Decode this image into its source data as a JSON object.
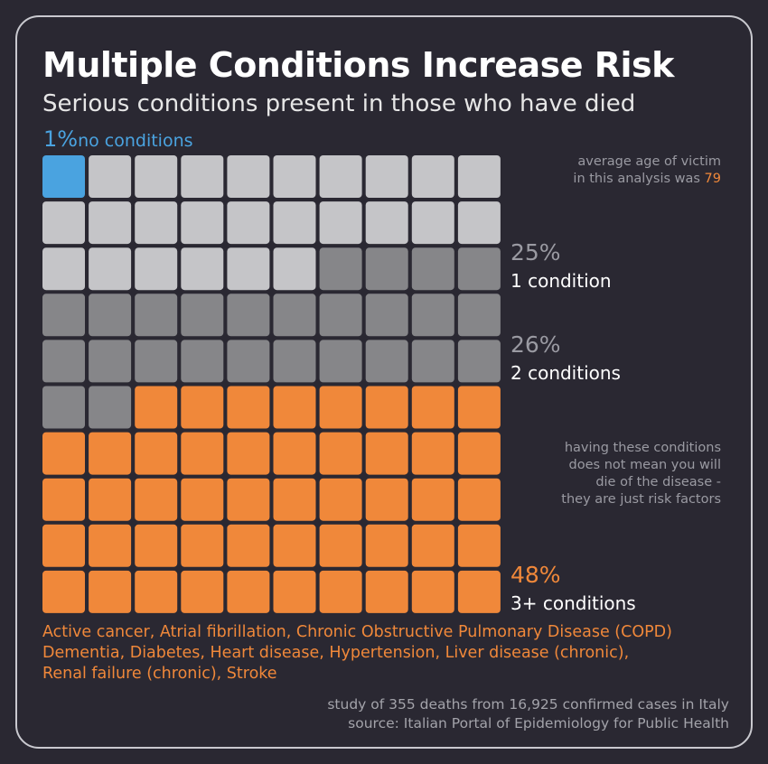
{
  "title": "Multiple Conditions Increase Risk",
  "subtitle": "Serious conditions present in those who have died",
  "no_conditions": {
    "pct": "1%",
    "label": "no conditions"
  },
  "avg_age_note": {
    "text": "average age of victim",
    "text2": "in this analysis was",
    "value": "79"
  },
  "risk_note": [
    "having these conditions",
    "does not mean you will",
    "die of the disease -",
    "they are just risk factors"
  ],
  "groups": [
    {
      "pct": "25%",
      "label": "1 condition"
    },
    {
      "pct": "26%",
      "label": "2 conditions"
    },
    {
      "pct": "48%",
      "label": "3+ conditions"
    }
  ],
  "conditions_list": [
    "Active cancer, Atrial fibrillation, Chronic Obstructive Pulmonary Disease (COPD)",
    "Dementia, Diabetes, Heart disease, Hypertension, Liver disease (chronic),",
    "Renal failure (chronic), Stroke"
  ],
  "footer": [
    "study of 355 deaths from 16,925 confirmed cases in Italy",
    "source: Italian Portal of Epidemiology for Public Health"
  ],
  "colors": {
    "background": "#2a2832",
    "no_conditions": "#4aa3e0",
    "one_condition": "#c5c5c8",
    "two_conditions": "#868689",
    "three_plus": "#f0883a"
  },
  "chart_data": {
    "type": "waffle",
    "grid": [
      10,
      10
    ],
    "series": [
      {
        "name": "no conditions",
        "value": 1,
        "color": "#4aa3e0"
      },
      {
        "name": "1 condition",
        "value": 25,
        "color": "#c5c5c8"
      },
      {
        "name": "2 conditions",
        "value": 26,
        "color": "#868689"
      },
      {
        "name": "3+ conditions",
        "value": 48,
        "color": "#f0883a"
      }
    ]
  }
}
